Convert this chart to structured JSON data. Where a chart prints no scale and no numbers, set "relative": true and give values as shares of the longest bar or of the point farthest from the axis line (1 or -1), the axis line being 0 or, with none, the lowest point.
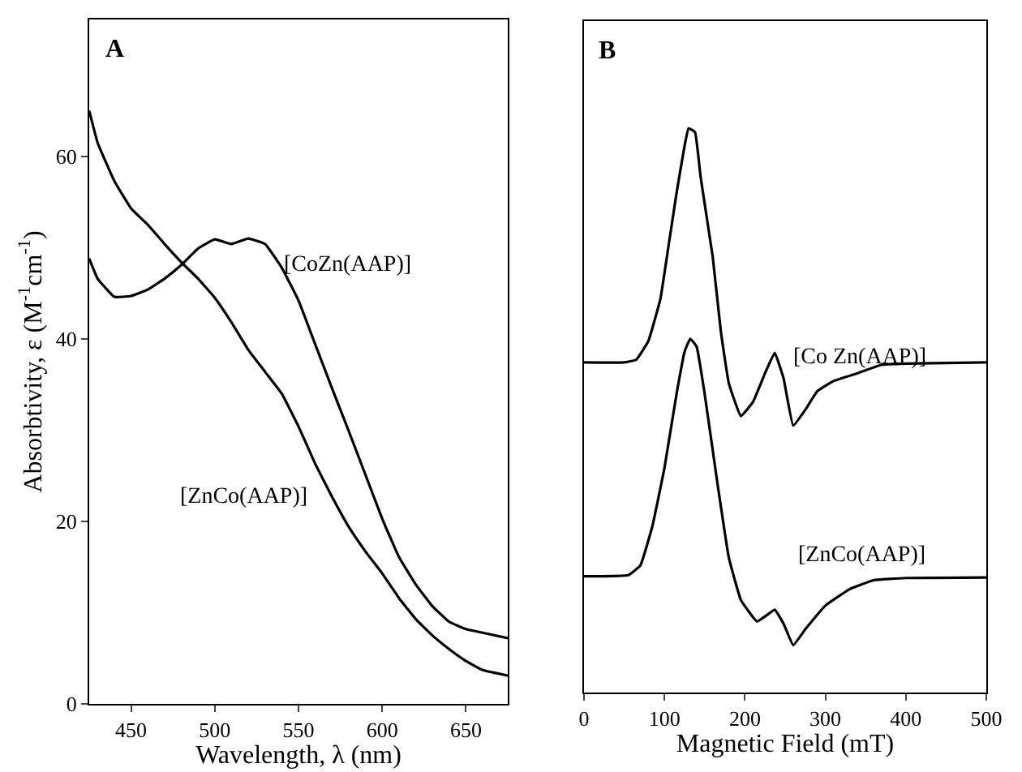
{
  "chart_data": [
    {
      "type": "line",
      "xlabel": "Wavelength, λ (nm)",
      "ylabel": "Absorbtivity, ε (M$^{-1}$cm$^{-1}$)",
      "xlim": [
        425,
        675
      ],
      "ylim": [
        0,
        75
      ],
      "xticks": [
        450,
        500,
        550,
        600,
        650
      ],
      "yticks": [
        0,
        20,
        40,
        60
      ],
      "grid": false,
      "legend": false,
      "marker": "none",
      "line_style": "solid",
      "annotations": [
        "A"
      ],
      "series": [
        {
          "name": "[CoZn(AAP)]",
          "color": "#000000",
          "x": [
            425,
            430,
            440,
            450,
            460,
            470,
            480,
            490,
            500,
            510,
            520,
            530,
            540,
            550,
            560,
            570,
            580,
            590,
            600,
            610,
            620,
            630,
            640,
            650,
            660,
            675
          ],
          "values": [
            48.8,
            46.6,
            44.6,
            44.7,
            45.4,
            46.6,
            48.1,
            49.9,
            50.9,
            50.4,
            51.0,
            50.4,
            47.8,
            44.2,
            39.4,
            34.6,
            29.9,
            25.1,
            20.3,
            16.1,
            13.1,
            10.7,
            9.0,
            8.2,
            7.8,
            7.2
          ]
        },
        {
          "name": "[ZnCo(AAP)]",
          "color": "#000000",
          "x": [
            425,
            430,
            440,
            450,
            460,
            470,
            480,
            490,
            500,
            510,
            520,
            530,
            540,
            550,
            560,
            570,
            580,
            590,
            600,
            610,
            620,
            630,
            640,
            650,
            660,
            675
          ],
          "values": [
            65.0,
            61.5,
            57.3,
            54.3,
            52.5,
            50.4,
            48.4,
            46.6,
            44.5,
            41.8,
            38.8,
            36.4,
            34.0,
            30.4,
            26.3,
            22.7,
            19.4,
            16.7,
            14.3,
            11.6,
            9.3,
            7.5,
            6.0,
            4.7,
            3.7,
            3.1
          ]
        }
      ]
    },
    {
      "type": "line",
      "xlabel": "Magnetic Field (mT)",
      "xlim": [
        0,
        500
      ],
      "xticks": [
        0,
        100,
        200,
        300,
        400,
        500
      ],
      "relative": true,
      "tick_labels": "x",
      "grid": false,
      "legend": false,
      "marker": "none",
      "line_style": "solid",
      "annotations": [
        "B"
      ],
      "series": [
        {
          "name": "[Co Zn(AAP)]",
          "color": "#000000",
          "x": [
            0,
            50,
            65,
            80,
            95,
            105,
            115,
            125,
            130,
            138,
            145,
            160,
            170,
            180,
            195,
            210,
            225,
            237,
            248,
            260,
            275,
            290,
            310,
            340,
            370,
            400,
            500
          ],
          "values": [
            0.585,
            0.585,
            0.59,
            0.623,
            0.698,
            0.791,
            0.885,
            0.969,
            1.0,
            0.993,
            0.913,
            0.772,
            0.641,
            0.548,
            0.49,
            0.515,
            0.566,
            0.602,
            0.557,
            0.473,
            0.501,
            0.534,
            0.552,
            0.566,
            0.581,
            0.583,
            0.585
          ]
        },
        {
          "name": "[ZnCo(AAP)]",
          "color": "#000000",
          "x": [
            0,
            55,
            70,
            85,
            100,
            115,
            125,
            132,
            140,
            150,
            165,
            180,
            195,
            215,
            230,
            237,
            248,
            260,
            275,
            300,
            330,
            360,
            400,
            500
          ],
          "values": [
            0.206,
            0.208,
            0.225,
            0.295,
            0.398,
            0.529,
            0.604,
            0.627,
            0.613,
            0.529,
            0.379,
            0.239,
            0.164,
            0.126,
            0.14,
            0.147,
            0.122,
            0.084,
            0.112,
            0.154,
            0.183,
            0.199,
            0.203,
            0.204
          ]
        }
      ]
    }
  ]
}
